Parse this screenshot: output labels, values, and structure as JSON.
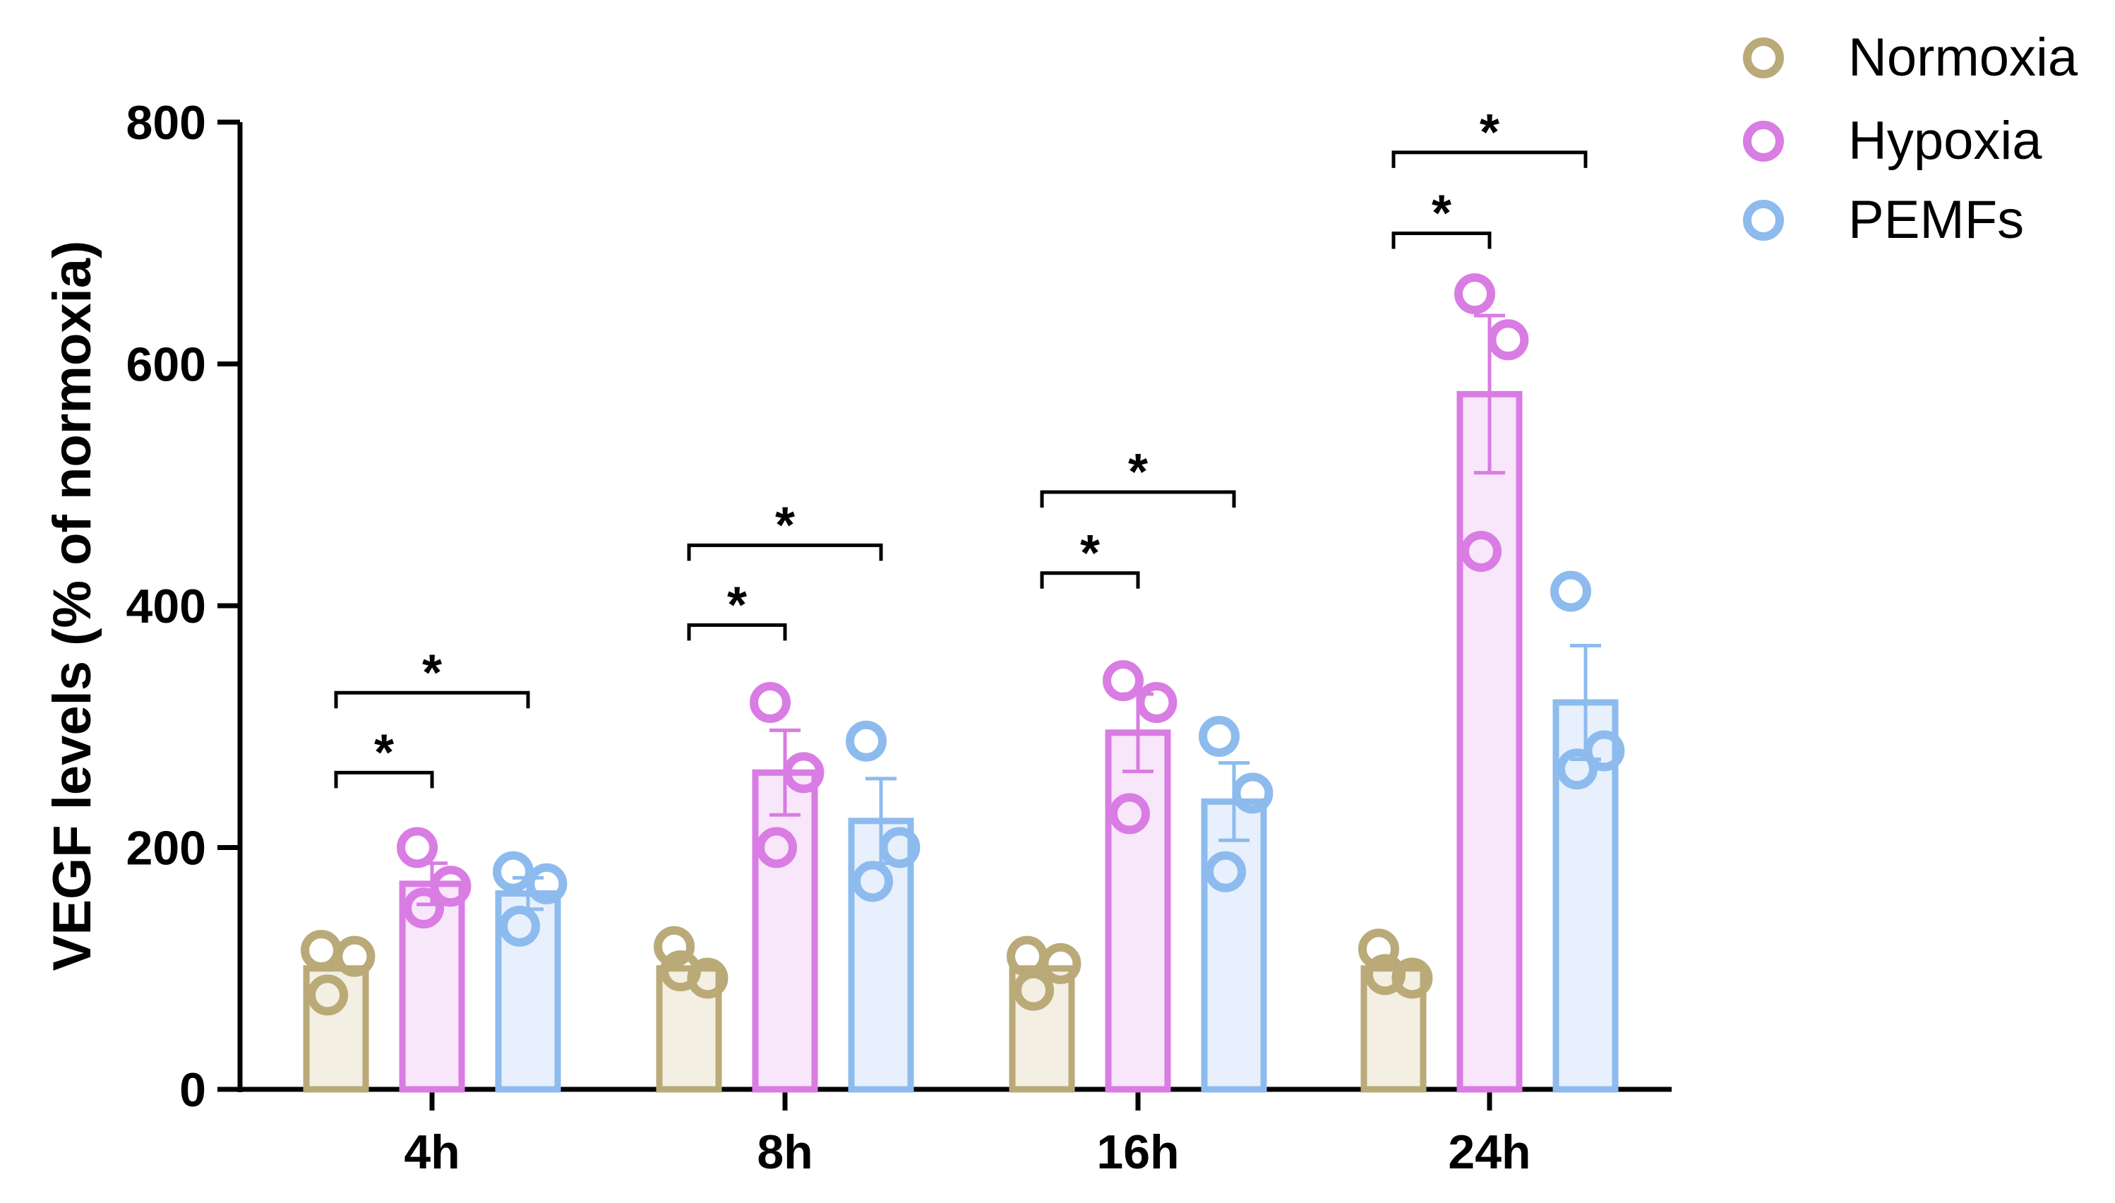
{
  "chart_data": {
    "type": "bar",
    "ylabel": "VEGF levels (% of normoxia)",
    "xlabel": "",
    "ylim": [
      0,
      800
    ],
    "yticks": [
      0,
      200,
      400,
      600,
      800
    ],
    "categories": [
      "4h",
      "8h",
      "16h",
      "24h"
    ],
    "legend_position": "top-right",
    "series": [
      {
        "name": "Normoxia",
        "color": "#B9AA78",
        "fill": "#F3EFE2",
        "values": [
          100,
          100,
          100,
          100
        ],
        "sem": [
          0,
          0,
          0,
          0
        ],
        "points": [
          [
            115,
            110,
            78
          ],
          [
            118,
            92,
            98
          ],
          [
            110,
            104,
            82
          ],
          [
            116,
            92,
            95
          ]
        ]
      },
      {
        "name": "Hypoxia",
        "color": "#D97CE3",
        "fill": "#F8E6FA",
        "values": [
          170,
          262,
          295,
          575
        ],
        "sem": [
          17,
          35,
          32,
          65
        ],
        "points": [
          [
            200,
            168,
            150
          ],
          [
            320,
            262,
            200
          ],
          [
            338,
            320,
            228
          ],
          [
            658,
            620,
            445
          ]
        ]
      },
      {
        "name": "PEMFs",
        "color": "#8DBBEE",
        "fill": "#E7F0FC",
        "values": [
          162,
          222,
          238,
          320
        ],
        "sem": [
          13,
          35,
          32,
          47
        ],
        "points": [
          [
            180,
            170,
            135
          ],
          [
            288,
            200,
            172
          ],
          [
            292,
            245,
            180
          ],
          [
            412,
            280,
            265
          ]
        ]
      }
    ],
    "annotations": [
      {
        "category": "4h",
        "from": "Normoxia",
        "to": "Hypoxia",
        "y": 262,
        "label": "*"
      },
      {
        "category": "4h",
        "from": "Normoxia",
        "to": "PEMFs",
        "y": 328,
        "label": "*"
      },
      {
        "category": "8h",
        "from": "Normoxia",
        "to": "Hypoxia",
        "y": 384,
        "label": "*"
      },
      {
        "category": "8h",
        "from": "Normoxia",
        "to": "PEMFs",
        "y": 450,
        "label": "*"
      },
      {
        "category": "16h",
        "from": "Normoxia",
        "to": "Hypoxia",
        "y": 427,
        "label": "*"
      },
      {
        "category": "16h",
        "from": "Normoxia",
        "to": "PEMFs",
        "y": 494,
        "label": "*"
      },
      {
        "category": "24h",
        "from": "Normoxia",
        "to": "Hypoxia",
        "y": 708,
        "label": "*"
      },
      {
        "category": "24h",
        "from": "Normoxia",
        "to": "PEMFs",
        "y": 775,
        "label": "*"
      }
    ]
  }
}
